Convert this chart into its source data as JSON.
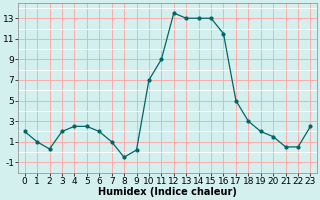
{
  "x": [
    0,
    1,
    2,
    3,
    4,
    5,
    6,
    7,
    8,
    9,
    10,
    11,
    12,
    13,
    14,
    15,
    16,
    17,
    18,
    19,
    20,
    21,
    22,
    23
  ],
  "y": [
    2,
    1,
    0.3,
    2,
    2.5,
    2.5,
    2,
    1,
    -0.5,
    0.2,
    7,
    9,
    13.5,
    13,
    13,
    13,
    11.5,
    5,
    3,
    2,
    1.5,
    0.5,
    0.5,
    2.5
  ],
  "line_color": "#006666",
  "marker_color": "#006666",
  "bg_color": "#d4f0ee",
  "grid_major_color": "#ffaaaa",
  "grid_minor_color": "#ffffff",
  "xlabel": "Humidex (Indice chaleur)",
  "xlim": [
    -0.5,
    23.5
  ],
  "ylim": [
    -2,
    14.5
  ],
  "yticks": [
    -1,
    1,
    3,
    5,
    7,
    9,
    11,
    13
  ],
  "xticks": [
    0,
    1,
    2,
    3,
    4,
    5,
    6,
    7,
    8,
    9,
    10,
    11,
    12,
    13,
    14,
    15,
    16,
    17,
    18,
    19,
    20,
    21,
    22,
    23
  ],
  "xlabel_fontsize": 7,
  "tick_fontsize": 6.5
}
